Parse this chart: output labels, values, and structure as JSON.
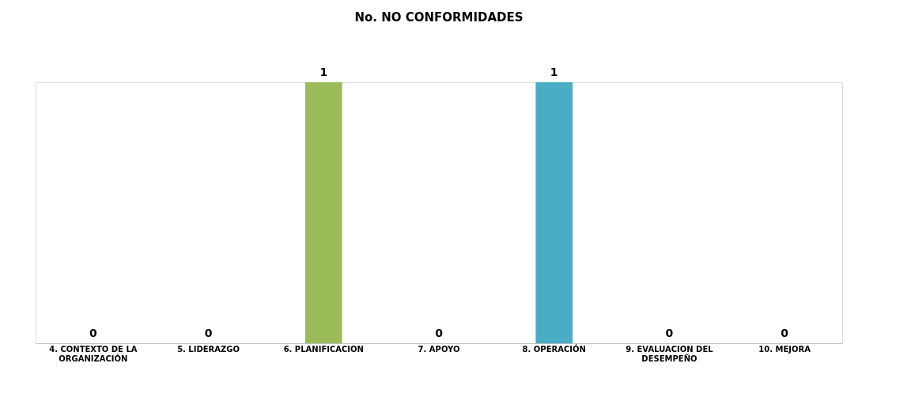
{
  "chart_data": {
    "type": "bar",
    "title": "No. NO CONFORMIDADES",
    "categories": [
      "4. CONTEXTO DE LA ORGANIZACIÓN",
      "5. LIDERAZGO",
      "6. PLANIFICACION",
      "7. APOYO",
      "8. OPERACIÓN",
      "9. EVALUACION DEL DESEMPEÑO",
      "10. MEJORA"
    ],
    "values": [
      0,
      0,
      1,
      0,
      1,
      0,
      0
    ],
    "colors": [
      "#4f81bd",
      "#c0504d",
      "#9bbb59",
      "#8064a2",
      "#4bacc6",
      "#f79646",
      "#2c4d75"
    ],
    "data_labels": true,
    "grid": false
  }
}
